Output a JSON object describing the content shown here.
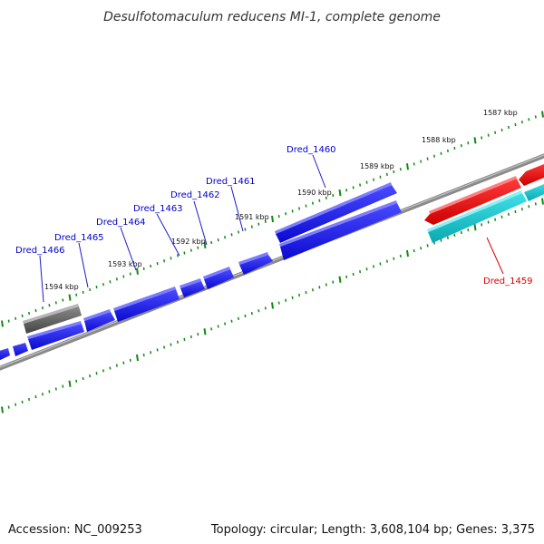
{
  "title": "Desulfotomaculum reducens MI-1, complete genome",
  "footer": {
    "accession": "Accession: NC_009253",
    "topology": "Topology: circular; Length: 3,608,104 bp; Genes: 3,375"
  },
  "colors": {
    "forward_gene": "#1010ee",
    "reverse_gene": "#e81010",
    "highlight_gene": "#10c8d0",
    "other_feature": "#666666",
    "backbone": "#888888",
    "tick": "#118811",
    "label_blue": "#0000cc",
    "label_red": "#dd0000"
  },
  "kbp_labels": [
    "1587 kbp",
    "1588 kbp",
    "1589 kbp",
    "1590 kbp",
    "1591 kbp",
    "1592 kbp",
    "1593 kbp",
    "1594 kbp"
  ],
  "gene_labels": [
    "Dred_1460",
    "Dred_1461",
    "Dred_1462",
    "Dred_1463",
    "Dred_1464",
    "Dred_1465",
    "Dred_1466",
    "Dred_1459"
  ]
}
